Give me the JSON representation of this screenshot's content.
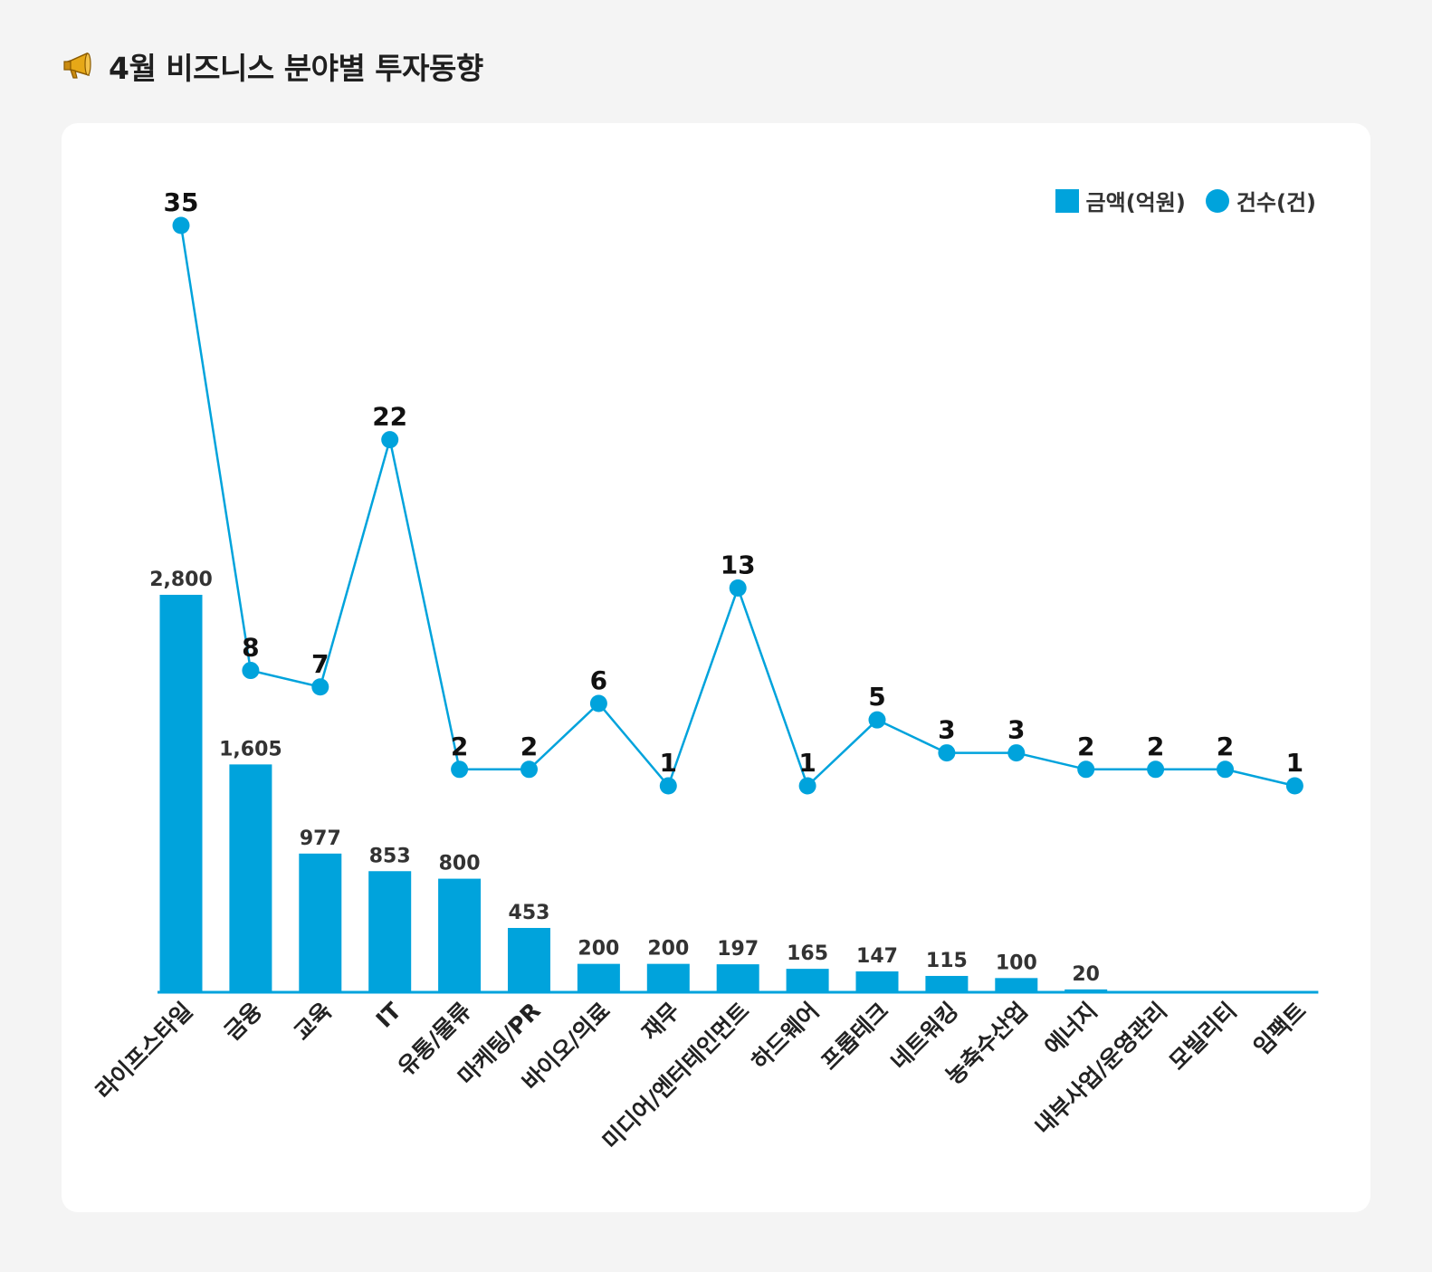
{
  "header": {
    "title": "4월 비즈니스 분야별 투자동향",
    "icon": "megaphone-icon"
  },
  "legend": {
    "amount_label": "금액(억원)",
    "count_label": "건수(건)"
  },
  "colors": {
    "accent": "#00a3dc",
    "background": "#f4f4f4",
    "card": "#ffffff"
  },
  "chart_data": {
    "type": "bar+line",
    "title": "4월 비즈니스 분야별 투자동향",
    "categories": [
      "라이프스타일",
      "금융",
      "교육",
      "IT",
      "유통/물류",
      "마케팅/PR",
      "바이오/의료",
      "재무",
      "미디어/엔터테인먼트",
      "하드웨어",
      "프롭테크",
      "네트워킹",
      "농축수산업",
      "에너지",
      "내부사업/운영관리",
      "모빌리티",
      "임팩트"
    ],
    "series": [
      {
        "name": "금액(억원)",
        "type": "bar",
        "values": [
          2800,
          1605,
          977,
          853,
          800,
          453,
          200,
          200,
          197,
          165,
          147,
          115,
          100,
          20,
          0,
          0,
          0
        ],
        "labels": [
          "2,800",
          "1,605",
          "977",
          "853",
          "800",
          "453",
          "200",
          "200",
          "197",
          "165",
          "147",
          "115",
          "100",
          "20",
          "",
          "",
          ""
        ]
      },
      {
        "name": "건수(건)",
        "type": "line",
        "values": [
          35,
          8,
          7,
          22,
          2,
          2,
          6,
          1,
          13,
          1,
          5,
          3,
          3,
          2,
          2,
          2,
          1
        ]
      }
    ],
    "legend_position": "top-right",
    "grid": false
  }
}
